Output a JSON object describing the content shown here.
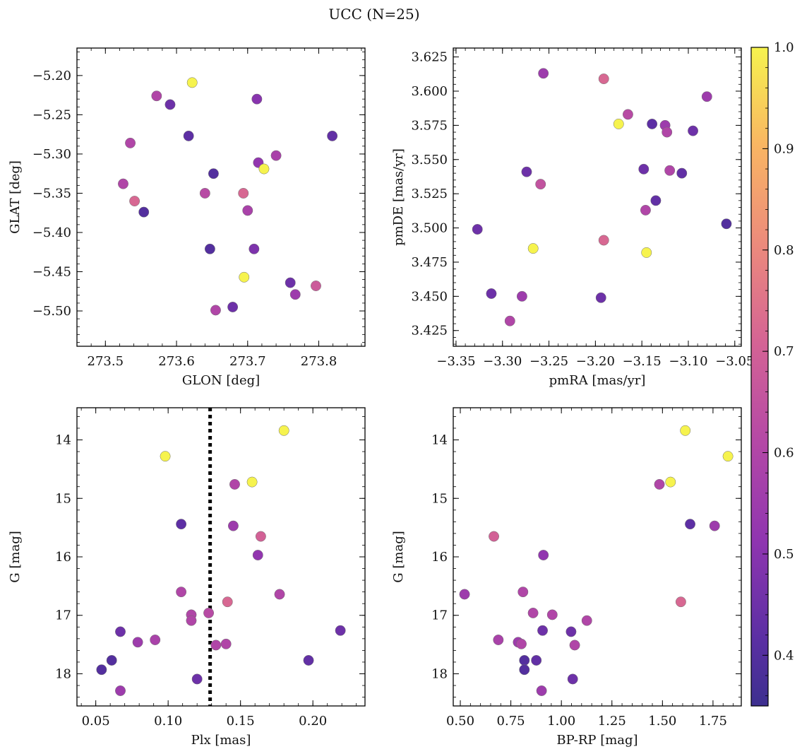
{
  "figure": {
    "title": "UCC (N=25)"
  },
  "colors": {
    "axis": "#000000",
    "marker_edge": "#6e6e6e",
    "vline": "#000000"
  },
  "colorbar": {
    "colormap": "plasma",
    "range": [
      0.35,
      1.0
    ],
    "ticks": [
      0.4,
      0.5,
      0.6,
      0.7,
      0.8,
      0.9,
      1.0
    ],
    "tick_labels": [
      "0.4",
      "0.5",
      "0.6",
      "0.7",
      "0.8",
      "0.9",
      "1.0"
    ]
  },
  "chart_data": [
    {
      "type": "scatter",
      "xlabel": "GLON [deg]",
      "ylabel": "GLAT [deg]",
      "xlim": [
        273.46,
        273.865
      ],
      "ylim": [
        -5.545,
        -5.165
      ],
      "x_reversed": false,
      "y_reversed": false,
      "xticks": [
        273.5,
        273.6,
        273.7,
        273.8
      ],
      "xtick_labels": [
        "273.5",
        "273.6",
        "273.7",
        "273.8"
      ],
      "yticks": [
        -5.2,
        -5.25,
        -5.3,
        -5.35,
        -5.4,
        -5.45,
        -5.5
      ],
      "ytick_labels": [
        "−5.20",
        "−5.25",
        "−5.30",
        "−5.35",
        "−5.40",
        "−5.45",
        "−5.50"
      ],
      "points": [
        {
          "x": 273.622,
          "y": -5.209,
          "c": 1.0
        },
        {
          "x": 273.572,
          "y": -5.226,
          "c": 0.6
        },
        {
          "x": 273.591,
          "y": -5.237,
          "c": 0.45
        },
        {
          "x": 273.713,
          "y": -5.23,
          "c": 0.5
        },
        {
          "x": 273.819,
          "y": -5.277,
          "c": 0.43
        },
        {
          "x": 273.617,
          "y": -5.277,
          "c": 0.42
        },
        {
          "x": 273.535,
          "y": -5.286,
          "c": 0.6
        },
        {
          "x": 273.74,
          "y": -5.302,
          "c": 0.58
        },
        {
          "x": 273.715,
          "y": -5.311,
          "c": 0.52
        },
        {
          "x": 273.723,
          "y": -5.319,
          "c": 1.0
        },
        {
          "x": 273.652,
          "y": -5.325,
          "c": 0.4
        },
        {
          "x": 273.525,
          "y": -5.338,
          "c": 0.6
        },
        {
          "x": 273.64,
          "y": -5.35,
          "c": 0.62
        },
        {
          "x": 273.694,
          "y": -5.35,
          "c": 0.72
        },
        {
          "x": 273.541,
          "y": -5.36,
          "c": 0.72
        },
        {
          "x": 273.7,
          "y": -5.372,
          "c": 0.58
        },
        {
          "x": 273.554,
          "y": -5.374,
          "c": 0.4
        },
        {
          "x": 273.647,
          "y": -5.421,
          "c": 0.4
        },
        {
          "x": 273.709,
          "y": -5.421,
          "c": 0.48
        },
        {
          "x": 273.695,
          "y": -5.457,
          "c": 1.0
        },
        {
          "x": 273.76,
          "y": -5.464,
          "c": 0.45
        },
        {
          "x": 273.796,
          "y": -5.468,
          "c": 0.68
        },
        {
          "x": 273.767,
          "y": -5.479,
          "c": 0.55
        },
        {
          "x": 273.679,
          "y": -5.495,
          "c": 0.45
        },
        {
          "x": 273.655,
          "y": -5.499,
          "c": 0.6
        }
      ]
    },
    {
      "type": "scatter",
      "xlabel": "pmRA [mas/yr]",
      "ylabel": "pmDE [mas/yr]",
      "xlim": [
        -3.353,
        -3.043
      ],
      "ylim": [
        3.4135,
        3.6315
      ],
      "x_reversed": false,
      "y_reversed": false,
      "xticks": [
        -3.35,
        -3.3,
        -3.25,
        -3.2,
        -3.15,
        -3.1,
        -3.05
      ],
      "xtick_labels": [
        "−3.35",
        "−3.30",
        "−3.25",
        "−3.20",
        "−3.15",
        "−3.10",
        "−3.05"
      ],
      "yticks": [
        3.425,
        3.45,
        3.475,
        3.5,
        3.525,
        3.55,
        3.575,
        3.6,
        3.625
      ],
      "ytick_labels": [
        "3.425",
        "3.450",
        "3.475",
        "3.500",
        "3.525",
        "3.550",
        "3.575",
        "3.600",
        "3.625"
      ],
      "points": [
        {
          "x": -3.256,
          "y": 3.613,
          "c": 0.55
        },
        {
          "x": -3.191,
          "y": 3.609,
          "c": 0.72
        },
        {
          "x": -3.08,
          "y": 3.596,
          "c": 0.55
        },
        {
          "x": -3.165,
          "y": 3.583,
          "c": 0.62
        },
        {
          "x": -3.175,
          "y": 3.576,
          "c": 1.0
        },
        {
          "x": -3.139,
          "y": 3.576,
          "c": 0.42
        },
        {
          "x": -3.125,
          "y": 3.575,
          "c": 0.55
        },
        {
          "x": -3.123,
          "y": 3.57,
          "c": 0.6
        },
        {
          "x": -3.095,
          "y": 3.571,
          "c": 0.45
        },
        {
          "x": -3.148,
          "y": 3.543,
          "c": 0.45
        },
        {
          "x": -3.12,
          "y": 3.542,
          "c": 0.6
        },
        {
          "x": -3.107,
          "y": 3.54,
          "c": 0.43
        },
        {
          "x": -3.274,
          "y": 3.541,
          "c": 0.45
        },
        {
          "x": -3.259,
          "y": 3.532,
          "c": 0.65
        },
        {
          "x": -3.135,
          "y": 3.52,
          "c": 0.43
        },
        {
          "x": -3.146,
          "y": 3.513,
          "c": 0.6
        },
        {
          "x": -3.327,
          "y": 3.499,
          "c": 0.45
        },
        {
          "x": -3.059,
          "y": 3.503,
          "c": 0.4
        },
        {
          "x": -3.191,
          "y": 3.491,
          "c": 0.72
        },
        {
          "x": -3.267,
          "y": 3.485,
          "c": 1.0
        },
        {
          "x": -3.145,
          "y": 3.482,
          "c": 1.0
        },
        {
          "x": -3.312,
          "y": 3.452,
          "c": 0.45
        },
        {
          "x": -3.279,
          "y": 3.45,
          "c": 0.55
        },
        {
          "x": -3.194,
          "y": 3.449,
          "c": 0.45
        },
        {
          "x": -3.292,
          "y": 3.432,
          "c": 0.6
        }
      ]
    },
    {
      "type": "scatter",
      "xlabel": "Plx [mas]",
      "ylabel": "G [mag]",
      "xlim": [
        0.037,
        0.236
      ],
      "ylim": [
        13.45,
        18.55
      ],
      "x_reversed": false,
      "y_reversed": true,
      "xticks": [
        0.05,
        0.1,
        0.15,
        0.2
      ],
      "xtick_labels": [
        "0.05",
        "0.10",
        "0.15",
        "0.20"
      ],
      "yticks": [
        14,
        15,
        16,
        17,
        18
      ],
      "ytick_labels": [
        "14",
        "15",
        "16",
        "17",
        "18"
      ],
      "vline": {
        "x": 0.129,
        "style": "dotted"
      },
      "points": [
        {
          "x": 0.18,
          "y": 13.84,
          "c": 1.0
        },
        {
          "x": 0.098,
          "y": 14.28,
          "c": 1.0
        },
        {
          "x": 0.158,
          "y": 14.72,
          "c": 1.0
        },
        {
          "x": 0.146,
          "y": 14.76,
          "c": 0.6
        },
        {
          "x": 0.109,
          "y": 15.44,
          "c": 0.42
        },
        {
          "x": 0.145,
          "y": 15.47,
          "c": 0.55
        },
        {
          "x": 0.164,
          "y": 15.65,
          "c": 0.7
        },
        {
          "x": 0.162,
          "y": 15.97,
          "c": 0.52
        },
        {
          "x": 0.109,
          "y": 16.6,
          "c": 0.6
        },
        {
          "x": 0.177,
          "y": 16.64,
          "c": 0.6
        },
        {
          "x": 0.141,
          "y": 16.77,
          "c": 0.72
        },
        {
          "x": 0.128,
          "y": 16.96,
          "c": 0.62
        },
        {
          "x": 0.116,
          "y": 16.99,
          "c": 0.6
        },
        {
          "x": 0.116,
          "y": 17.09,
          "c": 0.6
        },
        {
          "x": 0.067,
          "y": 17.28,
          "c": 0.45
        },
        {
          "x": 0.219,
          "y": 17.26,
          "c": 0.45
        },
        {
          "x": 0.091,
          "y": 17.42,
          "c": 0.58
        },
        {
          "x": 0.079,
          "y": 17.46,
          "c": 0.55
        },
        {
          "x": 0.14,
          "y": 17.49,
          "c": 0.6
        },
        {
          "x": 0.133,
          "y": 17.51,
          "c": 0.6
        },
        {
          "x": 0.061,
          "y": 17.77,
          "c": 0.4
        },
        {
          "x": 0.197,
          "y": 17.77,
          "c": 0.43
        },
        {
          "x": 0.054,
          "y": 17.93,
          "c": 0.4
        },
        {
          "x": 0.12,
          "y": 18.09,
          "c": 0.45
        },
        {
          "x": 0.067,
          "y": 18.29,
          "c": 0.55
        }
      ]
    },
    {
      "type": "scatter",
      "xlabel": "BP-RP [mag]",
      "ylabel": "G [mag]",
      "xlim": [
        0.465,
        1.89
      ],
      "ylim": [
        13.45,
        18.55
      ],
      "x_reversed": false,
      "y_reversed": true,
      "xticks": [
        0.5,
        0.75,
        1.0,
        1.25,
        1.5,
        1.75
      ],
      "xtick_labels": [
        "0.50",
        "0.75",
        "1.00",
        "1.25",
        "1.50",
        "1.75"
      ],
      "yticks": [
        14,
        15,
        16,
        17,
        18
      ],
      "ytick_labels": [
        "14",
        "15",
        "16",
        "17",
        "18"
      ],
      "points": [
        {
          "x": 1.613,
          "y": 13.84,
          "c": 1.0
        },
        {
          "x": 1.824,
          "y": 14.28,
          "c": 1.0
        },
        {
          "x": 1.54,
          "y": 14.72,
          "c": 1.0
        },
        {
          "x": 1.485,
          "y": 14.76,
          "c": 0.6
        },
        {
          "x": 1.637,
          "y": 15.44,
          "c": 0.42
        },
        {
          "x": 1.758,
          "y": 15.47,
          "c": 0.55
        },
        {
          "x": 0.666,
          "y": 15.65,
          "c": 0.7
        },
        {
          "x": 0.911,
          "y": 15.97,
          "c": 0.52
        },
        {
          "x": 0.81,
          "y": 16.6,
          "c": 0.6
        },
        {
          "x": 0.521,
          "y": 16.64,
          "c": 0.55
        },
        {
          "x": 1.591,
          "y": 16.77,
          "c": 0.72
        },
        {
          "x": 0.86,
          "y": 16.96,
          "c": 0.6
        },
        {
          "x": 0.955,
          "y": 16.99,
          "c": 0.6
        },
        {
          "x": 1.126,
          "y": 17.09,
          "c": 0.6
        },
        {
          "x": 0.907,
          "y": 17.26,
          "c": 0.45
        },
        {
          "x": 1.048,
          "y": 17.28,
          "c": 0.45
        },
        {
          "x": 0.688,
          "y": 17.42,
          "c": 0.58
        },
        {
          "x": 0.786,
          "y": 17.46,
          "c": 0.55
        },
        {
          "x": 0.802,
          "y": 17.49,
          "c": 0.6
        },
        {
          "x": 1.066,
          "y": 17.51,
          "c": 0.6
        },
        {
          "x": 0.817,
          "y": 17.77,
          "c": 0.4
        },
        {
          "x": 0.876,
          "y": 17.77,
          "c": 0.43
        },
        {
          "x": 0.817,
          "y": 17.93,
          "c": 0.4
        },
        {
          "x": 1.056,
          "y": 18.09,
          "c": 0.45
        },
        {
          "x": 0.902,
          "y": 18.29,
          "c": 0.55
        }
      ]
    }
  ]
}
